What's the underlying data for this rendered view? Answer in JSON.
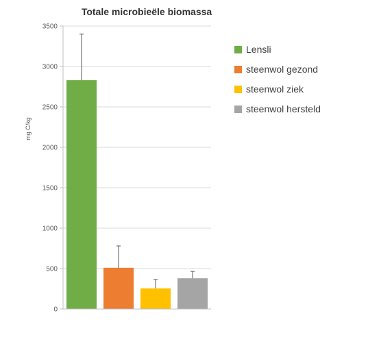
{
  "chart_data": {
    "type": "bar",
    "title": "Totale microbieële biomassa",
    "ylabel": "mg C/kg",
    "xlabel": "",
    "ylim": [
      0,
      3500
    ],
    "yticks": [
      0,
      500,
      1000,
      1500,
      2000,
      2500,
      3000,
      3500
    ],
    "grid": true,
    "legend_position": "right",
    "series": [
      {
        "name": "Lensli",
        "value": 2830,
        "error": 570,
        "color": "#70ad47"
      },
      {
        "name": "steenwol gezond",
        "value": 510,
        "error": 270,
        "color": "#ed7d31"
      },
      {
        "name": "steenwol ziek",
        "value": 255,
        "error": 110,
        "color": "#ffc000"
      },
      {
        "name": "steenwol hersteld",
        "value": 380,
        "error": 85,
        "color": "#a5a5a5"
      }
    ]
  }
}
